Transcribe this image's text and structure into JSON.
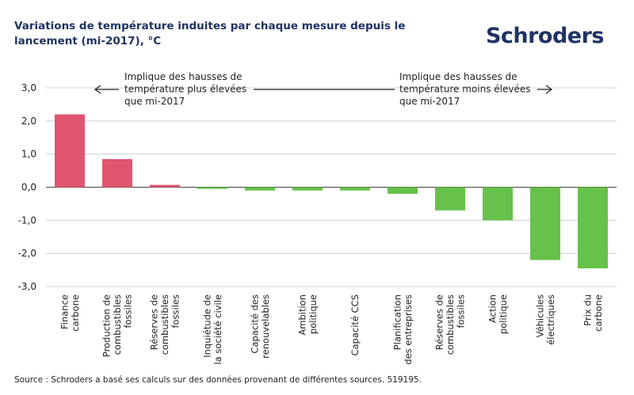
{
  "header": {
    "title": "Variations de température induites par chaque mesure depuis le lancement (mi-2017), °C",
    "logo": "Schroders"
  },
  "footer": {
    "source": "Source : Schroders a basé ses calculs sur des données provenant de différentes sources. 519195."
  },
  "colors": {
    "positive": "#e0566f",
    "negative": "#66c24a",
    "axis": "#444444",
    "grid": "#c8c8c8"
  },
  "chart_data": {
    "type": "bar",
    "title": "Variations de température induites par chaque mesure depuis le lancement (mi-2017), °C",
    "ylim": [
      -3.0,
      3.0
    ],
    "yticks": [
      {
        "value": 3.0,
        "label": "3,0"
      },
      {
        "value": 2.0,
        "label": "2,0"
      },
      {
        "value": 1.0,
        "label": "1,0"
      },
      {
        "value": 0.0,
        "label": "0,0"
      },
      {
        "value": -1.0,
        "label": "-1,0"
      },
      {
        "value": -2.0,
        "label": "-2,0"
      },
      {
        "value": -3.0,
        "label": "-3,0"
      }
    ],
    "grid": true,
    "categories": [
      [
        "Finance",
        "carbone"
      ],
      [
        "Production de",
        "combustibles",
        "fossiles"
      ],
      [
        "Réserves de",
        "combustibles",
        "fossiles"
      ],
      [
        "Inquiétude de",
        "la société civile"
      ],
      [
        "Capacité des",
        "renouvelables"
      ],
      [
        "Ambition",
        "politique"
      ],
      [
        "Capacité CCS"
      ],
      [
        "Planification",
        "des entreprises"
      ],
      [
        "Réserves de",
        "combustibles",
        "fossiles"
      ],
      [
        "Action",
        "politique"
      ],
      [
        "Véhicules",
        "électriques"
      ],
      [
        "Prix du",
        "carbone"
      ]
    ],
    "values": [
      2.2,
      0.85,
      0.07,
      -0.05,
      -0.1,
      -0.1,
      -0.1,
      -0.2,
      -0.7,
      -1.0,
      -2.2,
      -2.45
    ],
    "annotations": [
      {
        "lines": [
          "Implique des hausses de",
          "température plus élevées",
          "que mi-2017"
        ],
        "arrow": "left"
      },
      {
        "lines": [
          "Implique des hausses de",
          "température moins élevées",
          "que mi-2017"
        ],
        "arrow": "right"
      }
    ]
  }
}
